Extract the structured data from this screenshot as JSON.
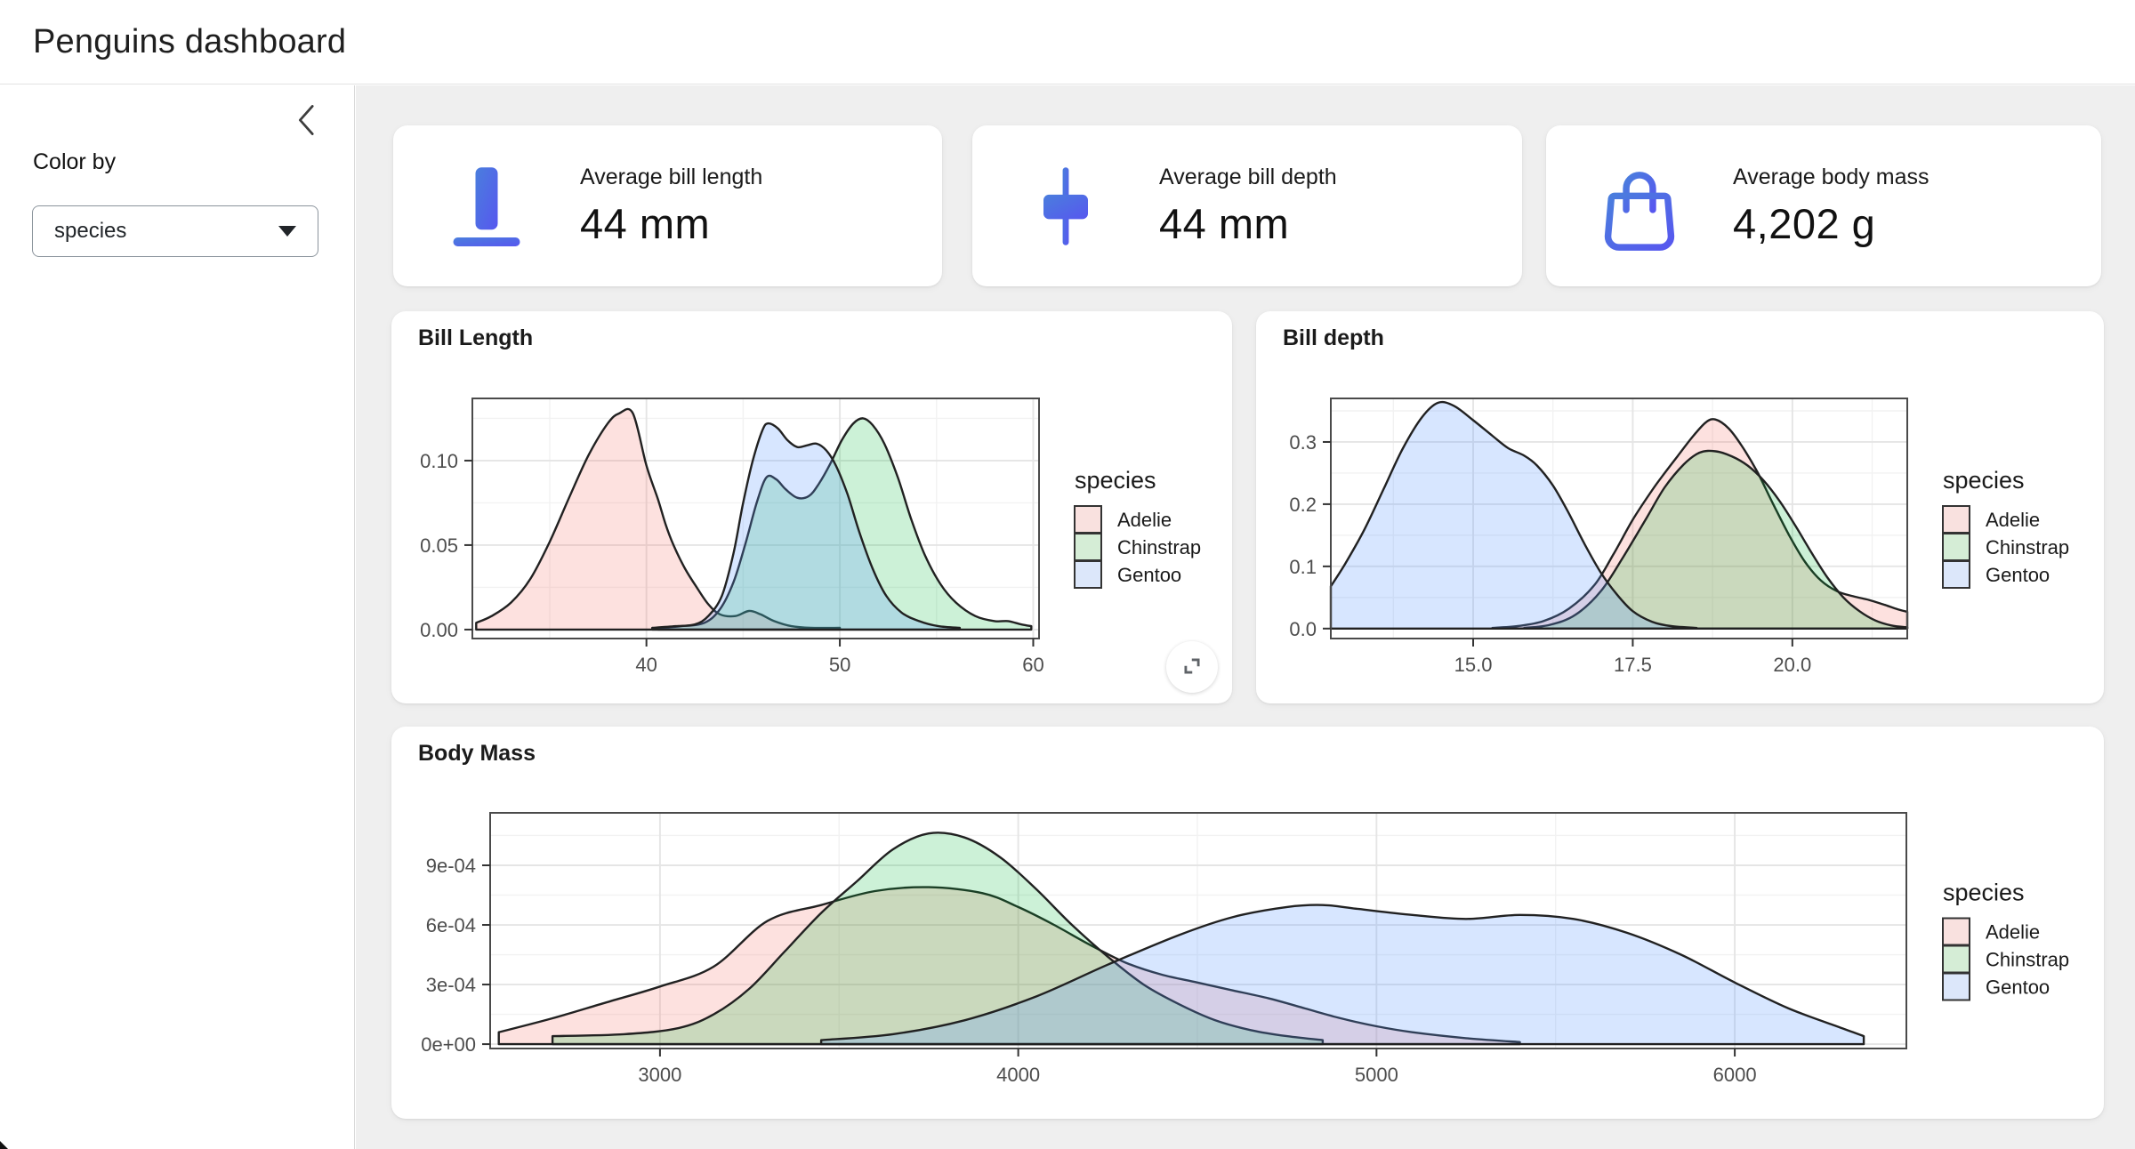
{
  "header": {
    "title": "Penguins dashboard"
  },
  "sidebar": {
    "collapse_icon": "chevron-left",
    "color_by_label": "Color by",
    "select_value": "species"
  },
  "value_boxes": [
    {
      "icon": "align-bottom-icon",
      "title": "Average bill length",
      "value": "44 mm"
    },
    {
      "icon": "align-center-icon",
      "title": "Average bill depth",
      "value": "44 mm"
    },
    {
      "icon": "handbag-icon",
      "title": "Average body mass",
      "value": "4,202 g"
    }
  ],
  "colors": {
    "icon_gradient_start": "#4a7edd",
    "icon_gradient_end": "#5757ef",
    "panel_border": "#4a4a4a",
    "grid_major": "#e5e5e5",
    "grid_minor": "#f2f2f2",
    "axis_text": "#4d4d4d",
    "curve_stroke": "#212121",
    "main_bg": "#efefef"
  },
  "chart_data": [
    {
      "type": "area",
      "title": "Bill Length",
      "xlabel": "",
      "ylabel": "",
      "xlim": [
        31.0,
        60.3
      ],
      "ylim": [
        -0.0053,
        0.1368
      ],
      "x_ticks": [
        {
          "v": 40,
          "label": "40"
        },
        {
          "v": 50,
          "label": "50"
        },
        {
          "v": 60,
          "label": "60"
        }
      ],
      "y_ticks": [
        {
          "v": 0,
          "label": "0.00"
        },
        {
          "v": 0.05,
          "label": "0.05"
        },
        {
          "v": 0.1,
          "label": "0.10"
        }
      ],
      "x_minor": [
        35,
        45,
        55
      ],
      "y_minor": [
        0.025,
        0.075,
        0.125
      ],
      "legend_title": "species",
      "has_expand_button": true,
      "series": [
        {
          "name": "Adelie",
          "key_fill": "#f9e1df",
          "fill": "rgba(248,118,109,0.22)",
          "points": [
            [
              31.2,
              0.004
            ],
            [
              32,
              0.008
            ],
            [
              33,
              0.016
            ],
            [
              34,
              0.03
            ],
            [
              35,
              0.052
            ],
            [
              36,
              0.078
            ],
            [
              37,
              0.103
            ],
            [
              38,
              0.122
            ],
            [
              38.6,
              0.128
            ],
            [
              39.3,
              0.128
            ],
            [
              40,
              0.097
            ],
            [
              40.6,
              0.077
            ],
            [
              41,
              0.062
            ],
            [
              41.4,
              0.05
            ],
            [
              42,
              0.036
            ],
            [
              42.6,
              0.025
            ],
            [
              43.2,
              0.015
            ],
            [
              43.8,
              0.009
            ],
            [
              44.6,
              0.008
            ],
            [
              45.3,
              0.011
            ],
            [
              45.9,
              0.009
            ],
            [
              46.6,
              0.005
            ],
            [
              47.5,
              0.002
            ],
            [
              48.5,
              0.001
            ],
            [
              50,
              0.001
            ]
          ]
        },
        {
          "name": "Chinstrap",
          "key_fill": "#d5edd6",
          "fill": "rgba(0,186,56,0.20)",
          "points": [
            [
              40.6,
              0.001
            ],
            [
              41.8,
              0.002
            ],
            [
              43,
              0.004
            ],
            [
              43.8,
              0.012
            ],
            [
              44.5,
              0.028
            ],
            [
              45.1,
              0.05
            ],
            [
              45.7,
              0.075
            ],
            [
              46.2,
              0.09
            ],
            [
              46.7,
              0.089
            ],
            [
              47.2,
              0.083
            ],
            [
              47.8,
              0.078
            ],
            [
              48.4,
              0.079
            ],
            [
              48.9,
              0.086
            ],
            [
              49.5,
              0.098
            ],
            [
              50.1,
              0.112
            ],
            [
              50.7,
              0.122
            ],
            [
              51.2,
              0.125
            ],
            [
              51.7,
              0.121
            ],
            [
              52.3,
              0.11
            ],
            [
              53,
              0.09
            ],
            [
              53.7,
              0.065
            ],
            [
              54.4,
              0.044
            ],
            [
              55.2,
              0.027
            ],
            [
              56,
              0.016
            ],
            [
              57,
              0.008
            ],
            [
              58,
              0.005
            ],
            [
              58.7,
              0.005
            ],
            [
              59.4,
              0.003
            ],
            [
              59.9,
              0.002
            ]
          ]
        },
        {
          "name": "Gentoo",
          "key_fill": "#dce7fa",
          "fill": "rgba(97,156,255,0.25)",
          "points": [
            [
              40.3,
              0.001
            ],
            [
              41.5,
              0.002
            ],
            [
              42.5,
              0.003
            ],
            [
              43.2,
              0.008
            ],
            [
              43.9,
              0.02
            ],
            [
              44.5,
              0.045
            ],
            [
              45,
              0.075
            ],
            [
              45.5,
              0.1
            ],
            [
              46,
              0.118
            ],
            [
              46.3,
              0.122
            ],
            [
              46.8,
              0.119
            ],
            [
              47.3,
              0.112
            ],
            [
              47.8,
              0.108
            ],
            [
              48.3,
              0.109
            ],
            [
              48.8,
              0.11
            ],
            [
              49.3,
              0.106
            ],
            [
              49.8,
              0.097
            ],
            [
              50.4,
              0.08
            ],
            [
              51,
              0.058
            ],
            [
              51.7,
              0.036
            ],
            [
              52.4,
              0.02
            ],
            [
              53.2,
              0.01
            ],
            [
              54.1,
              0.005
            ],
            [
              55.1,
              0.002
            ],
            [
              56.2,
              0.001
            ]
          ]
        }
      ]
    },
    {
      "type": "area",
      "title": "Bill depth",
      "xlabel": "",
      "ylabel": "",
      "xlim": [
        12.77,
        21.8
      ],
      "ylim": [
        -0.016,
        0.37
      ],
      "x_ticks": [
        {
          "v": 15,
          "label": "15.0"
        },
        {
          "v": 17.5,
          "label": "17.5"
        },
        {
          "v": 20,
          "label": "20.0"
        }
      ],
      "y_ticks": [
        {
          "v": 0,
          "label": "0.0"
        },
        {
          "v": 0.1,
          "label": "0.1"
        },
        {
          "v": 0.2,
          "label": "0.2"
        },
        {
          "v": 0.3,
          "label": "0.3"
        }
      ],
      "x_minor": [
        13.75,
        16.25,
        18.75,
        21.25
      ],
      "y_minor": [
        0.05,
        0.15,
        0.25,
        0.35
      ],
      "legend_title": "species",
      "has_expand_button": false,
      "series": [
        {
          "name": "Adelie",
          "key_fill": "#f9e1df",
          "fill": "rgba(248,118,109,0.22)",
          "points": [
            [
              15.3,
              0.001
            ],
            [
              15.7,
              0.004
            ],
            [
              16.1,
              0.012
            ],
            [
              16.5,
              0.032
            ],
            [
              16.9,
              0.07
            ],
            [
              17.2,
              0.12
            ],
            [
              17.5,
              0.175
            ],
            [
              17.8,
              0.222
            ],
            [
              18,
              0.25
            ],
            [
              18.2,
              0.277
            ],
            [
              18.45,
              0.31
            ],
            [
              18.65,
              0.332
            ],
            [
              18.8,
              0.336
            ],
            [
              19,
              0.322
            ],
            [
              19.2,
              0.295
            ],
            [
              19.45,
              0.252
            ],
            [
              19.7,
              0.2
            ],
            [
              19.95,
              0.15
            ],
            [
              20.2,
              0.107
            ],
            [
              20.45,
              0.077
            ],
            [
              20.7,
              0.06
            ],
            [
              20.95,
              0.052
            ],
            [
              21.2,
              0.046
            ],
            [
              21.45,
              0.038
            ],
            [
              21.65,
              0.031
            ],
            [
              21.8,
              0.027
            ]
          ]
        },
        {
          "name": "Chinstrap",
          "key_fill": "#d5edd6",
          "fill": "rgba(0,186,56,0.20)",
          "points": [
            [
              15.8,
              0.001
            ],
            [
              16.2,
              0.006
            ],
            [
              16.6,
              0.022
            ],
            [
              17,
              0.06
            ],
            [
              17.35,
              0.115
            ],
            [
              17.7,
              0.175
            ],
            [
              18,
              0.227
            ],
            [
              18.3,
              0.264
            ],
            [
              18.55,
              0.283
            ],
            [
              18.8,
              0.285
            ],
            [
              19.05,
              0.277
            ],
            [
              19.3,
              0.262
            ],
            [
              19.55,
              0.238
            ],
            [
              19.8,
              0.205
            ],
            [
              20.05,
              0.165
            ],
            [
              20.3,
              0.122
            ],
            [
              20.55,
              0.082
            ],
            [
              20.8,
              0.05
            ],
            [
              21.05,
              0.028
            ],
            [
              21.3,
              0.013
            ],
            [
              21.55,
              0.005
            ],
            [
              21.8,
              0.002
            ]
          ]
        },
        {
          "name": "Gentoo",
          "key_fill": "#dce7fa",
          "fill": "rgba(97,156,255,0.25)",
          "points": [
            [
              12.77,
              0.068
            ],
            [
              13,
              0.105
            ],
            [
              13.3,
              0.16
            ],
            [
              13.6,
              0.225
            ],
            [
              13.9,
              0.29
            ],
            [
              14.2,
              0.34
            ],
            [
              14.45,
              0.363
            ],
            [
              14.7,
              0.358
            ],
            [
              15,
              0.335
            ],
            [
              15.3,
              0.31
            ],
            [
              15.55,
              0.29
            ],
            [
              15.8,
              0.278
            ],
            [
              16,
              0.262
            ],
            [
              16.25,
              0.23
            ],
            [
              16.5,
              0.185
            ],
            [
              16.75,
              0.135
            ],
            [
              17,
              0.09
            ],
            [
              17.25,
              0.055
            ],
            [
              17.5,
              0.028
            ],
            [
              17.8,
              0.011
            ],
            [
              18.1,
              0.004
            ],
            [
              18.5,
              0.001
            ]
          ]
        }
      ]
    },
    {
      "type": "area",
      "title": "Body Mass",
      "xlabel": "",
      "ylabel": "",
      "xlim": [
        2526,
        6479
      ],
      "ylim": [
        -2.2e-05,
        0.001164
      ],
      "x_ticks": [
        {
          "v": 3000,
          "label": "3000"
        },
        {
          "v": 4000,
          "label": "4000"
        },
        {
          "v": 5000,
          "label": "5000"
        },
        {
          "v": 6000,
          "label": "6000"
        }
      ],
      "y_ticks": [
        {
          "v": 0,
          "label": "0e+00"
        },
        {
          "v": 0.0003,
          "label": "3e-04"
        },
        {
          "v": 0.0006,
          "label": "6e-04"
        },
        {
          "v": 0.0009,
          "label": "9e-04"
        }
      ],
      "x_minor": [
        3500,
        4500,
        5500
      ],
      "y_minor": [
        0.00015,
        0.00045,
        0.00075,
        0.00105
      ],
      "legend_title": "species",
      "has_expand_button": false,
      "series": [
        {
          "name": "Adelie",
          "key_fill": "#f9e1df",
          "fill": "rgba(248,118,109,0.22)",
          "points": [
            [
              2550,
              6e-05
            ],
            [
              2700,
              0.00013
            ],
            [
              2850,
              0.00021
            ],
            [
              3000,
              0.00029
            ],
            [
              3150,
              0.00039
            ],
            [
              3300,
              0.00062
            ],
            [
              3450,
              0.0007
            ],
            [
              3600,
              0.00077
            ],
            [
              3750,
              0.00079
            ],
            [
              3900,
              0.00076
            ],
            [
              4000,
              0.00069
            ],
            [
              4100,
              0.0006
            ],
            [
              4200,
              0.0005
            ],
            [
              4300,
              0.00041
            ],
            [
              4400,
              0.00035
            ],
            [
              4500,
              0.00031
            ],
            [
              4600,
              0.00027
            ],
            [
              4700,
              0.00023
            ],
            [
              4800,
              0.00018
            ],
            [
              4900,
              0.00013
            ],
            [
              5000,
              9e-05
            ],
            [
              5100,
              6e-05
            ],
            [
              5250,
              3e-05
            ],
            [
              5400,
              1e-05
            ]
          ]
        },
        {
          "name": "Chinstrap",
          "key_fill": "#d5edd6",
          "fill": "rgba(0,186,56,0.20)",
          "points": [
            [
              2700,
              4e-05
            ],
            [
              2900,
              5e-05
            ],
            [
              3050,
              8e-05
            ],
            [
              3150,
              0.00015
            ],
            [
              3250,
              0.00028
            ],
            [
              3350,
              0.00047
            ],
            [
              3450,
              0.00066
            ],
            [
              3550,
              0.00082
            ],
            [
              3650,
              0.00098
            ],
            [
              3750,
              0.00106
            ],
            [
              3850,
              0.00104
            ],
            [
              3950,
              0.00094
            ],
            [
              4050,
              0.00078
            ],
            [
              4150,
              0.0006
            ],
            [
              4250,
              0.00044
            ],
            [
              4350,
              0.0003
            ],
            [
              4450,
              0.0002
            ],
            [
              4550,
              0.00012
            ],
            [
              4650,
              7e-05
            ],
            [
              4750,
              4e-05
            ],
            [
              4850,
              2e-05
            ]
          ]
        },
        {
          "name": "Gentoo",
          "key_fill": "#dce7fa",
          "fill": "rgba(97,156,255,0.25)",
          "points": [
            [
              3450,
              2e-05
            ],
            [
              3650,
              5e-05
            ],
            [
              3850,
              0.00012
            ],
            [
              4050,
              0.00024
            ],
            [
              4250,
              0.0004
            ],
            [
              4450,
              0.00055
            ],
            [
              4600,
              0.00064
            ],
            [
              4750,
              0.00069
            ],
            [
              4850,
              0.0007
            ],
            [
              4950,
              0.00068
            ],
            [
              5100,
              0.00065
            ],
            [
              5250,
              0.00063
            ],
            [
              5400,
              0.00065
            ],
            [
              5550,
              0.00063
            ],
            [
              5700,
              0.00056
            ],
            [
              5850,
              0.00045
            ],
            [
              6000,
              0.00031
            ],
            [
              6150,
              0.00018
            ],
            [
              6300,
              8e-05
            ],
            [
              6360,
              4e-05
            ]
          ]
        }
      ]
    }
  ]
}
